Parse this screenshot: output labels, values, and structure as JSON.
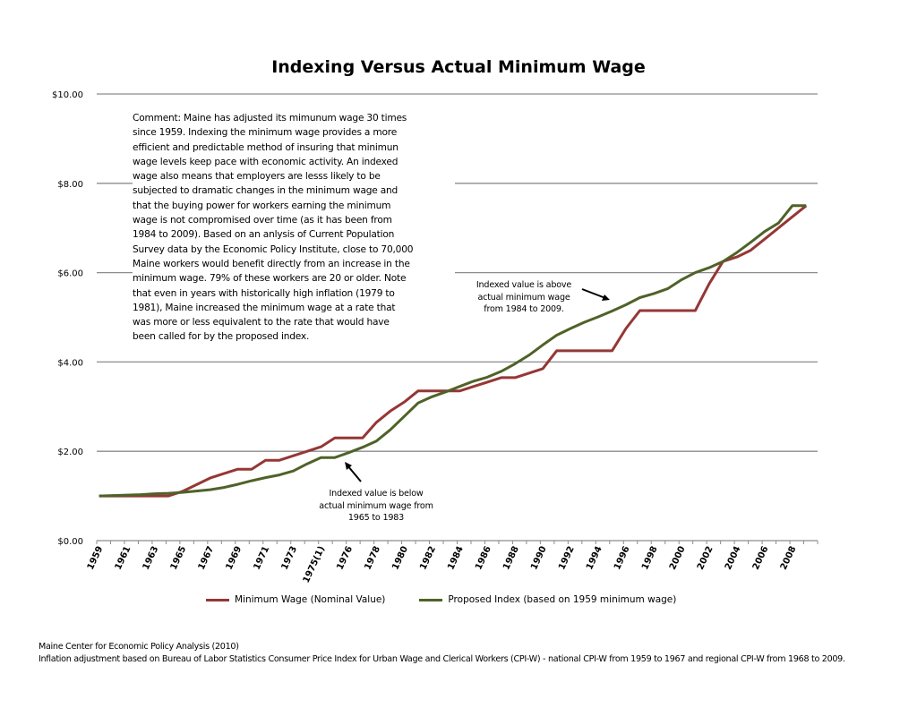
{
  "chart_data": {
    "type": "line",
    "title": "Indexing Versus Actual Minimum Wage",
    "xlabel": "",
    "ylabel": "",
    "ylim": [
      0,
      10
    ],
    "yticks": [
      "$0.00",
      "$2.00",
      "$4.00",
      "$6.00",
      "$8.00",
      "$10.00"
    ],
    "ytick_values": [
      0,
      2,
      4,
      6,
      8,
      10
    ],
    "grid": "horizontal",
    "legend_placement": "bottom",
    "categories": [
      "1959",
      "1960",
      "1961",
      "1962",
      "1963",
      "1964",
      "1965",
      "1966",
      "1967",
      "1968",
      "1969",
      "1970",
      "1971",
      "1972",
      "1973",
      "1974",
      "1975(1)",
      "1975(2)",
      "1976",
      "1977",
      "1978",
      "1979",
      "1980",
      "1981",
      "1982",
      "1983",
      "1984",
      "1985",
      "1986",
      "1987",
      "1988",
      "1989",
      "1990",
      "1991",
      "1992",
      "1993",
      "1994",
      "1995",
      "1996",
      "1997",
      "1998",
      "1999",
      "2000",
      "2001",
      "2002",
      "2003",
      "2004",
      "2005",
      "2006",
      "2007",
      "2008",
      "2009"
    ],
    "xtick_labels": [
      "1959",
      "1961",
      "1963",
      "1965",
      "1967",
      "1969",
      "1971",
      "1973",
      "1975(1)",
      "1976",
      "1978",
      "1980",
      "1982",
      "1984",
      "1986",
      "1988",
      "1990",
      "1992",
      "1994",
      "1996",
      "1998",
      "2000",
      "2002",
      "2004",
      "2006",
      "2008"
    ],
    "series": [
      {
        "name": "Minimum Wage (Nominal Value)",
        "color": "#953735",
        "values": [
          1.0,
          1.0,
          1.0,
          1.0,
          1.0,
          1.0,
          1.1,
          1.25,
          1.4,
          1.5,
          1.6,
          1.6,
          1.8,
          1.8,
          1.9,
          2.0,
          2.1,
          2.3,
          2.3,
          2.3,
          2.65,
          2.9,
          3.1,
          3.35,
          3.35,
          3.35,
          3.35,
          3.45,
          3.55,
          3.65,
          3.65,
          3.75,
          3.85,
          4.25,
          4.25,
          4.25,
          4.25,
          4.25,
          4.75,
          5.15,
          5.15,
          5.15,
          5.15,
          5.15,
          5.75,
          6.25,
          6.35,
          6.5,
          6.75,
          7.0,
          7.25,
          7.5
        ]
      },
      {
        "name": "Proposed Index (based on 1959 minimum wage)",
        "color": "#4f6228",
        "values": [
          1.0,
          1.01,
          1.02,
          1.03,
          1.05,
          1.06,
          1.08,
          1.11,
          1.14,
          1.19,
          1.26,
          1.34,
          1.41,
          1.47,
          1.56,
          1.72,
          1.86,
          1.86,
          1.97,
          2.09,
          2.23,
          2.48,
          2.78,
          3.08,
          3.22,
          3.33,
          3.45,
          3.57,
          3.66,
          3.79,
          3.96,
          4.15,
          4.38,
          4.6,
          4.75,
          4.89,
          5.01,
          5.14,
          5.28,
          5.44,
          5.53,
          5.64,
          5.84,
          6.0,
          6.11,
          6.25,
          6.45,
          6.68,
          6.92,
          7.11,
          7.5,
          7.5
        ]
      }
    ],
    "annotations": {
      "comment": [
        "Comment: Maine has adjusted its mimunum wage 30 times",
        "since 1959.  Indexing the minimum wage provides a more",
        "efficient and predictable method of insuring that minimun",
        "wage levels keep pace with economic activity. An indexed",
        "wage also means that employers are lesss likely to be",
        "subjected to dramatic changes in the minimum wage and",
        "that the buying power for workers earning the minimum",
        "wage is not compromised over time (as it has been from",
        "1984 to 2009).  Based on an anlysis of Current Population",
        "Survey data by the Economic Policy Institute, close to 70,000",
        "Maine workers would benefit directly from an increase in the",
        "minimum wage.  79% of these workers are 20 or older.  Note",
        "that even in years with historically high inflation (1979 to",
        "1981), Maine increased the minimum wage at a rate that",
        "was more or less equivalent to the rate that would have",
        "been called for by the proposed index."
      ],
      "below": [
        "Indexed value is below",
        "actual minimum wage from",
        "1965 to 1983"
      ],
      "above": [
        "Indexed value is above",
        "actual minimum wage",
        "from 1984 to 2009."
      ]
    }
  },
  "footer": {
    "source": "Maine Center for Economic Policy Analysis (2010)",
    "note": "Inflation adjustment based on Bureau of Labor Statistics Consumer Price Index for Urban Wage and Clerical Workers (CPI-W) - national CPI-W from 1959 to 1967 and regional CPI-W from 1968 to 2009."
  }
}
